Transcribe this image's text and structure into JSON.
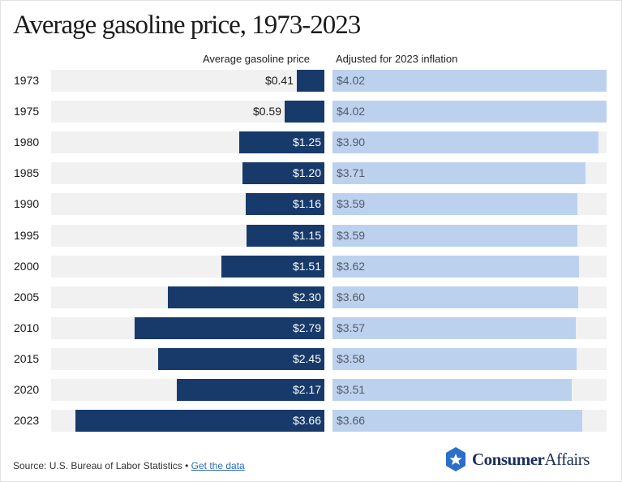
{
  "title": "Average gasoline price, 1973-2023",
  "column_headers": {
    "left": "Average gasoline price",
    "right": "Adjusted for 2023 inflation"
  },
  "chart_data": {
    "type": "bar",
    "orientation": "horizontal",
    "categories": [
      "1973",
      "1975",
      "1980",
      "1985",
      "1990",
      "1995",
      "2000",
      "2005",
      "2010",
      "2015",
      "2020",
      "2023"
    ],
    "series": [
      {
        "name": "Average gasoline price",
        "values": [
          0.41,
          0.59,
          1.25,
          1.2,
          1.16,
          1.15,
          1.51,
          2.3,
          2.79,
          2.45,
          2.17,
          3.66
        ],
        "labels": [
          "$0.41",
          "$0.59",
          "$1.25",
          "$1.20",
          "$1.16",
          "$1.15",
          "$1.51",
          "$2.30",
          "$2.79",
          "$2.45",
          "$2.17",
          "$3.66"
        ],
        "color": "#173a6b",
        "direction": "leftward"
      },
      {
        "name": "Adjusted for 2023 inflation",
        "values": [
          4.02,
          4.02,
          3.9,
          3.71,
          3.59,
          3.59,
          3.62,
          3.6,
          3.57,
          3.58,
          3.51,
          3.66
        ],
        "labels": [
          "$4.02",
          "$4.02",
          "$3.90",
          "$3.71",
          "$3.59",
          "$3.59",
          "$3.62",
          "$3.60",
          "$3.57",
          "$3.58",
          "$3.51",
          "$3.66"
        ],
        "color": "#bcd1ee",
        "direction": "rightward"
      }
    ],
    "xlim": [
      0,
      4.02
    ],
    "grid": false,
    "legend": "column headers"
  },
  "footer": {
    "source_text": "Source: U.S. Bureau of Labor Statistics",
    "separator": " • ",
    "link_text": "Get the data"
  },
  "logo": {
    "brand_bold": "Consumer",
    "brand_regular": "Affairs",
    "icon": "star-shield-icon",
    "color": "#1b2f5c"
  }
}
